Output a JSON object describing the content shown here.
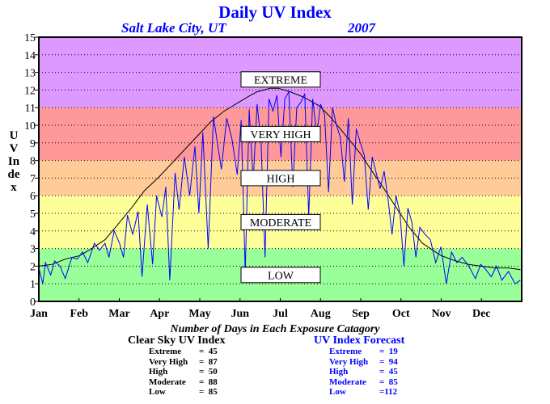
{
  "chart_data": {
    "type": "line",
    "title": "Daily UV Index",
    "subtitle": "Salt Lake City, UT",
    "year": "2007",
    "ylabel": "UV Index",
    "ylim": [
      0,
      15
    ],
    "yticks": [
      0,
      1,
      2,
      3,
      4,
      5,
      6,
      7,
      8,
      9,
      10,
      11,
      12,
      13,
      14,
      15
    ],
    "xlim": [
      0,
      365
    ],
    "x_tick_labels": [
      "Jan",
      "Feb",
      "Mar",
      "Apr",
      "May",
      "Jun",
      "Jul",
      "Aug",
      "Sep",
      "Oct",
      "Nov",
      "Dec"
    ],
    "grid": true,
    "bands": [
      {
        "label": "LOW",
        "from": 0,
        "to": 3,
        "color": "#99ff99",
        "label_y": 1.5
      },
      {
        "label": "MODERATE",
        "from": 3,
        "to": 6,
        "color": "#ffff99",
        "label_y": 4.5
      },
      {
        "label": "HIGH",
        "from": 6,
        "to": 8,
        "color": "#ffcc99",
        "label_y": 7
      },
      {
        "label": "VERY HIGH",
        "from": 8,
        "to": 11,
        "color": "#ff9999",
        "label_y": 9.5
      },
      {
        "label": "EXTREME",
        "from": 11,
        "to": 15,
        "color": "#dd99ff",
        "label_y": 12.6
      }
    ],
    "series": [
      {
        "color": "#000000",
        "x": [
          0,
          10,
          20,
          31,
          40,
          50,
          59,
          70,
          80,
          90,
          100,
          110,
          120,
          130,
          140,
          151,
          160,
          165,
          170,
          175,
          181,
          190,
          200,
          212,
          220,
          230,
          243,
          250,
          260,
          273,
          280,
          290,
          304,
          315,
          325,
          334,
          345,
          355,
          364
        ],
        "y": [
          2.0,
          2.1,
          2.4,
          2.6,
          3.0,
          3.5,
          4.3,
          5.3,
          6.3,
          7.0,
          7.8,
          8.6,
          9.4,
          10.2,
          10.8,
          11.3,
          11.7,
          11.9,
          12.0,
          12.1,
          12.1,
          11.9,
          11.6,
          11.1,
          10.5,
          9.6,
          8.4,
          7.6,
          6.5,
          5.0,
          4.2,
          3.3,
          2.6,
          2.3,
          2.1,
          2.0,
          1.9,
          1.9,
          1.8
        ]
      },
      {
        "color": "#0000ff",
        "x": [
          0,
          3,
          5,
          9,
          12,
          16,
          20,
          25,
          29,
          33,
          37,
          42,
          46,
          50,
          53,
          57,
          61,
          64,
          67,
          71,
          75,
          78,
          82,
          86,
          89,
          93,
          96,
          99,
          103,
          106,
          110,
          114,
          118,
          121,
          124,
          128,
          132,
          135,
          138,
          142,
          146,
          150,
          153,
          156,
          159,
          162,
          165,
          168,
          171,
          174,
          177,
          180,
          183,
          186,
          189,
          192,
          195,
          198,
          201,
          204,
          207,
          210,
          213,
          216,
          219,
          222,
          225,
          228,
          231,
          234,
          237,
          240,
          243,
          246,
          249,
          252,
          255,
          258,
          261,
          264,
          267,
          270,
          273,
          276,
          279,
          282,
          285,
          288,
          292,
          296,
          300,
          304,
          308,
          312,
          316,
          320,
          325,
          330,
          334,
          338,
          342,
          346,
          350,
          355,
          360,
          364
        ],
        "y": [
          1.9,
          1.0,
          2.2,
          1.5,
          2.3,
          2.0,
          1.3,
          2.5,
          2.4,
          2.8,
          2.2,
          3.3,
          2.9,
          3.3,
          2.5,
          4.0,
          3.3,
          2.5,
          4.9,
          3.8,
          5.1,
          1.4,
          5.5,
          2.1,
          6.0,
          4.8,
          6.5,
          1.2,
          7.3,
          5.2,
          8.2,
          6.0,
          8.8,
          5.0,
          9.6,
          3.0,
          10.5,
          9.0,
          7.5,
          10.4,
          9.2,
          7.2,
          10.3,
          1.6,
          10.9,
          6.8,
          11.2,
          9.0,
          2.5,
          11.5,
          10.8,
          11.7,
          8.2,
          11.5,
          11.9,
          6.5,
          11.0,
          11.3,
          11.8,
          4.8,
          11.5,
          9.5,
          11.2,
          10.6,
          6.2,
          11.0,
          10.0,
          9.3,
          6.8,
          10.4,
          5.5,
          9.8,
          9.0,
          8.3,
          5.2,
          8.2,
          7.3,
          6.4,
          7.4,
          5.8,
          3.8,
          6.0,
          5.0,
          2.0,
          5.3,
          4.5,
          2.5,
          4.2,
          3.8,
          3.5,
          2.2,
          3.1,
          1.0,
          2.8,
          2.2,
          2.5,
          2.0,
          1.3,
          2.1,
          1.8,
          1.4,
          2.0,
          1.2,
          1.7,
          1.0,
          1.2
        ]
      }
    ]
  },
  "tables": {
    "heading": "Number of Days in Each Exposure Catagory",
    "clear_sky": {
      "title": "Clear Sky UV Index",
      "rows": [
        {
          "label": "Extreme",
          "value": "=  45"
        },
        {
          "label": "Very High",
          "value": "=  87"
        },
        {
          "label": "High",
          "value": "=  50"
        },
        {
          "label": "Moderate",
          "value": "=  88"
        },
        {
          "label": "Low",
          "value": "=  85"
        }
      ]
    },
    "forecast": {
      "title": "UV Index Forecast",
      "rows": [
        {
          "label": "Extreme",
          "value": "=  19"
        },
        {
          "label": "Very High",
          "value": "=  94"
        },
        {
          "label": "High",
          "value": "=  45"
        },
        {
          "label": "Moderate",
          "value": "=  85"
        },
        {
          "label": "Low",
          "value": "=112"
        }
      ]
    }
  }
}
